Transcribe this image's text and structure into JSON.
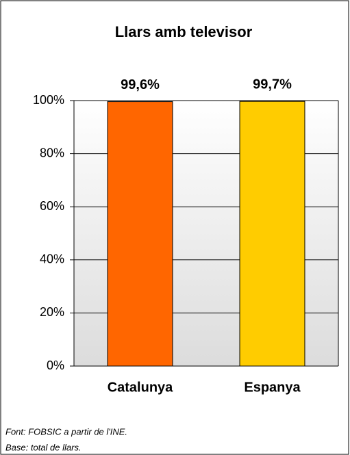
{
  "chart_data": {
    "type": "bar",
    "title": "Llars amb televisor",
    "categories": [
      "Catalunya",
      "Espanya"
    ],
    "values": [
      99.6,
      99.7
    ],
    "value_labels": [
      "99,6%",
      "99,7%"
    ],
    "colors": [
      "#ff6600",
      "#ffcc00"
    ],
    "ylim": [
      0,
      100
    ],
    "yticks": [
      {
        "value": 0,
        "label": "0%"
      },
      {
        "value": 20,
        "label": "20%"
      },
      {
        "value": 40,
        "label": "40%"
      },
      {
        "value": 60,
        "label": "60%"
      },
      {
        "value": 80,
        "label": "80%"
      },
      {
        "value": 100,
        "label": "100%"
      }
    ],
    "grid": true,
    "notes": [
      "Font: FOBSIC a partir de l'INE.",
      "Base: total de llars."
    ]
  }
}
